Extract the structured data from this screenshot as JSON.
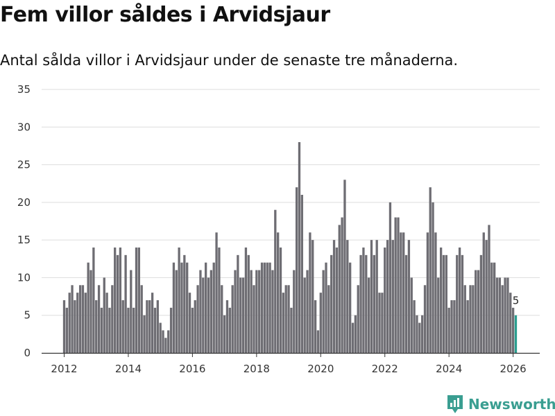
{
  "title": "Fem villor såldes i Arvidsjaur",
  "subtitle": "Antal sålda villor i Arvidsjaur under de senaste tre månaderna.",
  "brand": "Newsworthy",
  "colors": {
    "bar": "#6e6d73",
    "highlight": "#2a9d8f",
    "grid": "#dddddd",
    "axis": "#333333",
    "brand": "#3a9e91"
  },
  "chart_data": {
    "type": "bar",
    "title": "Fem villor såldes i Arvidsjaur",
    "xlabel": "",
    "ylabel": "",
    "ylim": [
      0,
      35
    ],
    "yticks": [
      0,
      5,
      10,
      15,
      20,
      25,
      30,
      35
    ],
    "xticks": [
      "2012",
      "2014",
      "2016",
      "2018",
      "2020",
      "2022",
      "2024",
      "2026"
    ],
    "start": "2012-01",
    "grid": true,
    "values": [
      7,
      6,
      8,
      9,
      7,
      8,
      9,
      9,
      8,
      12,
      11,
      14,
      7,
      9,
      6,
      10,
      8,
      6,
      9,
      14,
      13,
      14,
      7,
      13,
      6,
      11,
      6,
      14,
      14,
      9,
      5,
      7,
      7,
      8,
      6,
      7,
      4,
      3,
      2,
      3,
      6,
      12,
      11,
      14,
      12,
      13,
      12,
      8,
      6,
      7,
      9,
      11,
      10,
      12,
      10,
      11,
      12,
      16,
      14,
      9,
      5,
      7,
      6,
      9,
      11,
      13,
      10,
      10,
      14,
      13,
      11,
      9,
      11,
      11,
      12,
      12,
      12,
      12,
      11,
      19,
      16,
      14,
      8,
      9,
      9,
      6,
      11,
      22,
      28,
      21,
      10,
      11,
      16,
      15,
      7,
      3,
      8,
      11,
      12,
      9,
      13,
      15,
      14,
      17,
      18,
      23,
      15,
      12,
      4,
      5,
      9,
      13,
      14,
      13,
      10,
      15,
      13,
      15,
      8,
      8,
      14,
      15,
      20,
      15,
      18,
      18,
      16,
      16,
      13,
      15,
      10,
      7,
      5,
      4,
      5,
      9,
      16,
      22,
      20,
      16,
      10,
      14,
      13,
      13,
      6,
      7,
      7,
      13,
      14,
      13,
      9,
      7,
      9,
      9,
      11,
      11,
      13,
      16,
      15,
      17,
      12,
      12,
      10,
      10,
      9,
      10,
      10,
      8,
      6,
      5
    ],
    "highlight": {
      "label": "5",
      "value": 5,
      "index": 169
    }
  }
}
